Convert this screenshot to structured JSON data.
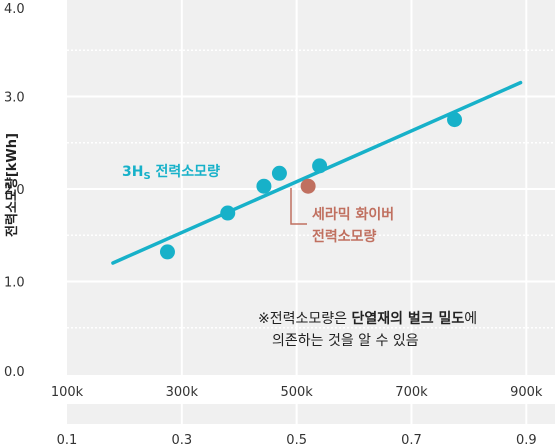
{
  "chart_data": {
    "type": "scatter",
    "ylabel": "전력소모량[kWh]",
    "ylim": [
      0,
      4.0
    ],
    "xlim": [
      100,
      950
    ],
    "grid": true,
    "x_ticks": [
      "100k",
      "300k",
      "500k",
      "700k",
      "900k"
    ],
    "x_tick_values": [
      100,
      300,
      500,
      700,
      900
    ],
    "x2_ticks": [
      "0.1",
      "0.3",
      "0.5",
      "0.7",
      "0.9"
    ],
    "y_ticks": [
      "0.0",
      "1.0",
      "2.0",
      "3.0",
      "4.0"
    ],
    "y_tick_values": [
      0,
      1,
      2,
      3,
      4
    ],
    "series": [
      {
        "name": "3Hs 전력소모량",
        "color": "#17b1c9",
        "points": [
          {
            "x": 275,
            "y": 1.32
          },
          {
            "x": 380,
            "y": 1.74
          },
          {
            "x": 443,
            "y": 2.03
          },
          {
            "x": 470,
            "y": 2.17
          },
          {
            "x": 540,
            "y": 2.25
          },
          {
            "x": 775,
            "y": 2.75
          }
        ],
        "trendline": {
          "x": [
            180,
            890
          ],
          "y": [
            1.2,
            3.15
          ]
        }
      },
      {
        "name": "세라믹 화이버 전력소모량",
        "color": "#c07060",
        "points": [
          {
            "x": 520,
            "y": 2.03
          }
        ]
      }
    ],
    "annotations": {
      "series_label_1": "3H",
      "series_label_1_sub": "S",
      "series_label_1_rest": " 전력소모량",
      "series_label_2_line1": "세라믹 화이버",
      "series_label_2_line2": "전력소모량",
      "note_line1_prefix": "※전력소모량은 ",
      "note_line1_bold": "단열재의 벌크 밀도",
      "note_line1_suffix": "에",
      "note_line2": "의존하는 것을 알 수 있음"
    }
  }
}
